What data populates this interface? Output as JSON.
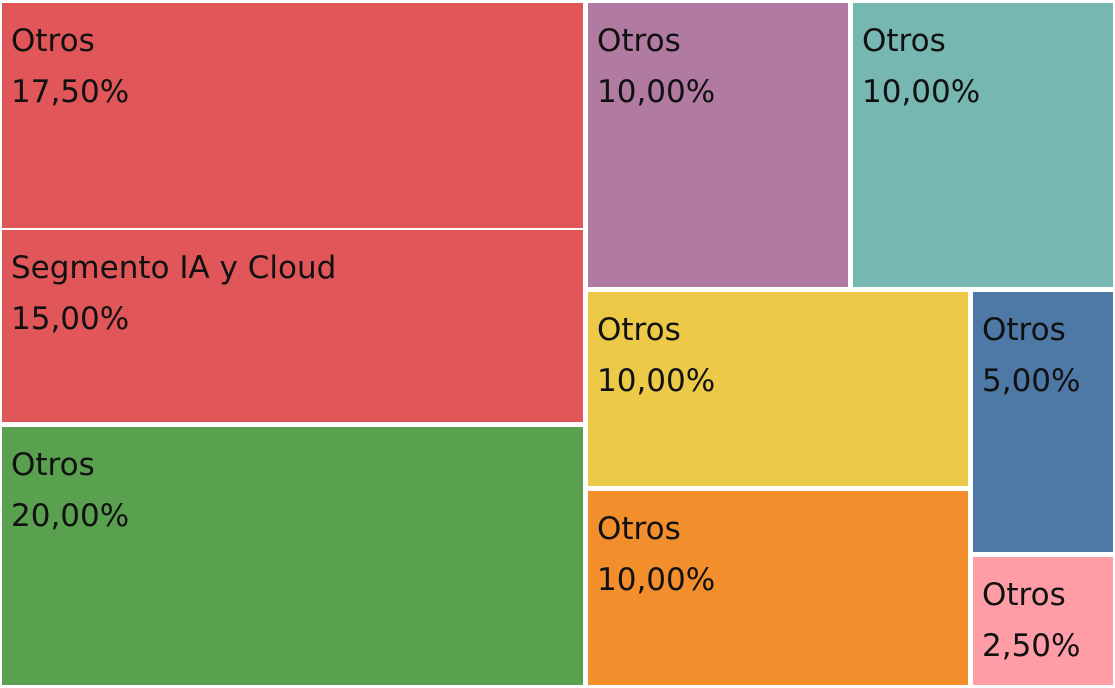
{
  "chart_data": {
    "type": "treemap",
    "title": "",
    "legend": "none",
    "items": [
      {
        "label": "Otros",
        "value": 17.5,
        "display": "17,50%",
        "color": "#E15759"
      },
      {
        "label": "Segmento IA y Cloud",
        "value": 15.0,
        "display": "15,00%",
        "color": "#E15759"
      },
      {
        "label": "Otros",
        "value": 20.0,
        "display": "20,00%",
        "color": "#59A14F"
      },
      {
        "label": "Otros",
        "value": 10.0,
        "display": "10,00%",
        "color": "#B07AA1"
      },
      {
        "label": "Otros",
        "value": 10.0,
        "display": "10,00%",
        "color": "#76B7B2"
      },
      {
        "label": "Otros",
        "value": 10.0,
        "display": "10,00%",
        "color": "#EDC948"
      },
      {
        "label": "Otros",
        "value": 10.0,
        "display": "10,00%",
        "color": "#F28E2B"
      },
      {
        "label": "Otros",
        "value": 5.0,
        "display": "5,00%",
        "color": "#4E79A7"
      },
      {
        "label": "Otros",
        "value": 2.5,
        "display": "2,50%",
        "color": "#FF9DA7"
      }
    ]
  }
}
